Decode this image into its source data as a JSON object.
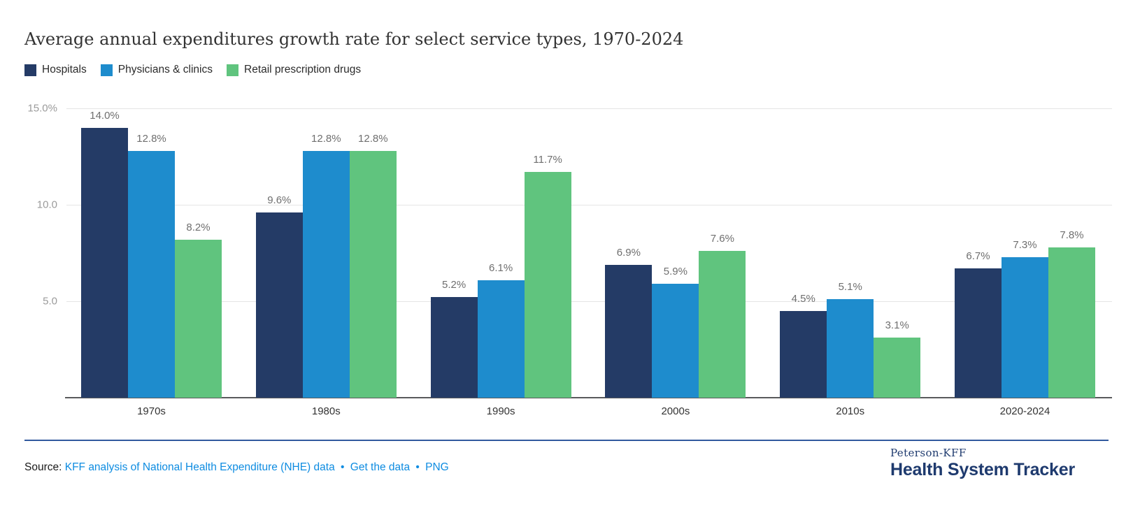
{
  "title": "Average annual expenditures growth rate for select service types, 1970-2024",
  "chart_data": {
    "type": "bar",
    "title": "Average annual expenditures growth rate for select service types, 1970-2024",
    "categories": [
      "1970s",
      "1980s",
      "1990s",
      "2000s",
      "2010s",
      "2020-2024"
    ],
    "series": [
      {
        "name": "Hospitals",
        "color": "#243b66",
        "values": [
          14.0,
          9.6,
          5.2,
          6.9,
          4.5,
          6.7
        ]
      },
      {
        "name": "Physicians & clinics",
        "color": "#1e8ccd",
        "values": [
          12.8,
          12.8,
          6.1,
          5.9,
          5.1,
          7.3
        ]
      },
      {
        "name": "Retail prescription drugs",
        "color": "#60c47e",
        "values": [
          8.2,
          12.8,
          11.7,
          7.6,
          3.1,
          7.8
        ]
      }
    ],
    "ylim": [
      0,
      15
    ],
    "yticks": [
      {
        "value": 15,
        "label": "15.0%"
      },
      {
        "value": 10,
        "label": "10.0"
      },
      {
        "value": 5,
        "label": "5.0"
      }
    ],
    "grid": true,
    "legend_position": "top-left",
    "value_label_suffix": "%",
    "colors": {
      "gridline": "#e5e5e5",
      "axis_line": "#595a5c",
      "ytick_text": "#9b9b9b",
      "value_text": "#6f6f6f",
      "xlabel_text": "#333333"
    }
  },
  "footer": {
    "source_label": "Source:",
    "links": [
      "KFF analysis of National Health Expenditure (NHE) data",
      "Get the data",
      "PNG"
    ],
    "separator": "•",
    "link_color": "#0e8ce1"
  },
  "logo": {
    "line1": "Peterson-KFF",
    "line2": "Health System Tracker"
  }
}
